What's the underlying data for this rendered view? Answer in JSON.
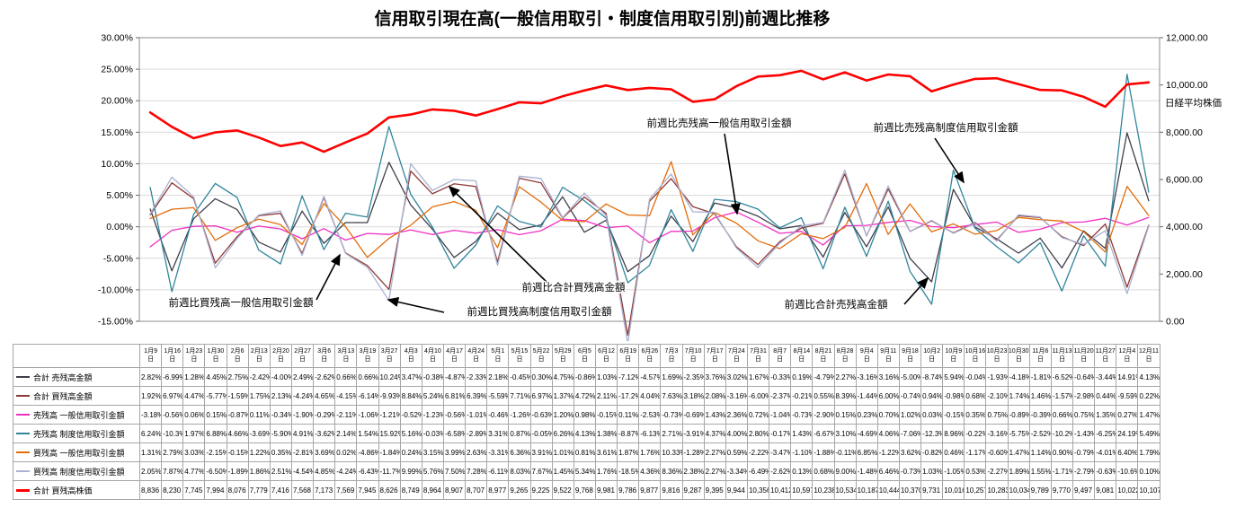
{
  "chart_data": {
    "type": "line",
    "title": "信用取引現在高(一般信用取引・制度信用取引別)前週比推移",
    "x_categories": [
      "1月9日",
      "1月16日",
      "1月23日",
      "1月30日",
      "2月6日",
      "2月13日",
      "2月20日",
      "2月27日",
      "3月6日",
      "3月13日",
      "3月19日",
      "3月27日",
      "4月3日",
      "4月10日",
      "4月17日",
      "4月24日",
      "5月1日",
      "5月15日",
      "5月22日",
      "5月29日",
      "6月5日",
      "6月12日",
      "6月19日",
      "6月26日",
      "7月3日",
      "7月10日",
      "7月17日",
      "7月24日",
      "7月31日",
      "8月7日",
      "8月14日",
      "8月21日",
      "8月28日",
      "9月4日",
      "9月11日",
      "9月18日",
      "10月2日",
      "10月9日",
      "10月16日",
      "10月23日",
      "10月30日",
      "11月6日",
      "11月13日",
      "11月20日",
      "11月27日",
      "12月4日",
      "12月11日"
    ],
    "left_axis": {
      "min": -15,
      "max": 30,
      "step": 5,
      "tick_labels": [
        "30.00%",
        "25.00%",
        "20.00%",
        "15.00%",
        "10.00%",
        "5.00%",
        "0.00%",
        "-5.00%",
        "-10.00%",
        "-15.00%"
      ]
    },
    "right_axis": {
      "min": 0,
      "max": 12000,
      "step": 2000,
      "title": "日経平均株価",
      "tick_labels": [
        "12,000.00",
        "10,000.00",
        "8,000.00",
        "6,000.00",
        "4,000.00",
        "2,000.00",
        "0.00"
      ]
    },
    "series": [
      {
        "label": "合計 売残高金額",
        "color": "#3f3f4c",
        "axis": "left",
        "cells": [
          "2.82%",
          "-6.99%",
          "1.28%",
          "4.45%",
          "2.75%",
          "-2.42%",
          "-4.00%",
          "2.49%",
          "-2.62%",
          "0.66%",
          "0.66%",
          "10.24%",
          "3.47%",
          "-0.38%",
          "-4.87%",
          "-2.33%",
          "2.18%",
          "-0.45%",
          "0.30%",
          "4.75%",
          "-0.86%",
          "1.03%",
          "-7.12%",
          "-4.57%",
          "1.69%",
          "-2.35%",
          "3.76%",
          "3.02%",
          "1.67%",
          "-0.33%",
          "0.19%",
          "-4.79%",
          "2.27%",
          "-3.16%",
          "3.16%",
          "-5.00%",
          "-8.74%",
          "5.94%",
          "-0.04%",
          "-1.93%",
          "-4.18%",
          "-1.81%",
          "-6.52%",
          "-0.64%",
          "-3.44%",
          "14.91%",
          "4.13%"
        ]
      },
      {
        "label": "合計 買残高金額",
        "color": "#8e3836",
        "axis": "left",
        "cells": [
          "1.92%",
          "6.97%",
          "4.47%",
          "-5.77%",
          "-1.59%",
          "1.75%",
          "2.13%",
          "-4.24%",
          "4.65%",
          "-4.15%",
          "-6.14%",
          "-9.93%",
          "8.84%",
          "5.24%",
          "6.81%",
          "6.39%",
          "-5.59%",
          "7.71%",
          "6.97%",
          "1.37%",
          "4.72%",
          "2.11%",
          "-17.2%",
          "4.04%",
          "7.63%",
          "3.18%",
          "2.08%",
          "-3.16%",
          "-6.00%",
          "-2.37%",
          "-0.21%",
          "0.55%",
          "8.39%",
          "-1.44%",
          "6.00%",
          "-0.74%",
          "0.94%",
          "-0.98%",
          "0.68%",
          "-2.10%",
          "1.74%",
          "1.46%",
          "-1.57%",
          "-2.98%",
          "0.44%",
          "-9.59%",
          "0.22%"
        ]
      },
      {
        "label": "売残高 一般信用取引金額",
        "color": "#f02fc2",
        "axis": "left",
        "cells": [
          "-3.18%",
          "-0.56%",
          "0.06%",
          "0.15%",
          "-0.87%",
          "0.11%",
          "-0.34%",
          "-1.90%",
          "-0.29%",
          "-2.11%",
          "-1.06%",
          "-1.21%",
          "-0.52%",
          "-1.23%",
          "-0.56%",
          "-1.01%",
          "-0.46%",
          "-1.26%",
          "-0.63%",
          "1.20%",
          "0.98%",
          "-0.15%",
          "0.11%",
          "-2.53%",
          "-0.73%",
          "-0.69%",
          "1.43%",
          "2.36%",
          "0.72%",
          "-1.04%",
          "-0.73%",
          "-2.90%",
          "0.15%",
          "0.23%",
          "0.70%",
          "1.02%",
          "0.03%",
          "-0.15%",
          "0.35%",
          "0.75%",
          "-0.89%",
          "-0.39%",
          "0.66%",
          "0.75%",
          "1.35%",
          "0.27%",
          "1.47%"
        ]
      },
      {
        "label": "売残高 制度信用取引金額",
        "color": "#31859c",
        "axis": "left",
        "cells": [
          "6.24%",
          "-10.3%",
          "1.97%",
          "6.88%",
          "4.66%",
          "-3.69%",
          "-5.90%",
          "4.91%",
          "-3.62%",
          "2.14%",
          "1.54%",
          "15.92%",
          "5.16%",
          "-0.03%",
          "-6.58%",
          "-2.89%",
          "3.31%",
          "0.87%",
          "-0.05%",
          "6.26%",
          "4.13%",
          "1.38%",
          "-8.87%",
          "-6.13%",
          "2.71%",
          "-3.91%",
          "4.37%",
          "4.00%",
          "2.80%",
          "-0.17%",
          "1.43%",
          "-6.67%",
          "3.10%",
          "-4.69%",
          "4.06%",
          "-7.06%",
          "-12.3%",
          "8.96%",
          "-0.22%",
          "-3.16%",
          "-5.75%",
          "-2.52%",
          "-10.2%",
          "-1.43%",
          "-6.25%",
          "24.19%",
          "5.49%"
        ]
      },
      {
        "label": "買残高 一般信用取引金額",
        "color": "#e36c0a",
        "axis": "left",
        "cells": [
          "1.31%",
          "2.79%",
          "3.03%",
          "-2.15%",
          "-0.15%",
          "1.22%",
          "0.35%",
          "-2.81%",
          "3.69%",
          "0.02%",
          "-4.86%",
          "-1.84%",
          "0.24%",
          "3.15%",
          "3.99%",
          "2.63%",
          "-3.31%",
          "6.36%",
          "3.91%",
          "1.01%",
          "0.81%",
          "3.61%",
          "1.87%",
          "1.76%",
          "10.33%",
          "-1.28%",
          "2.27%",
          "0.59%",
          "-2.22%",
          "-3.47%",
          "-1.10%",
          "-1.88%",
          "-0.11%",
          "6.85%",
          "-1.22%",
          "3.62%",
          "-0.82%",
          "0.46%",
          "-1.17%",
          "-0.60%",
          "1.47%",
          "1.14%",
          "0.90%",
          "-0.79%",
          "-4.01%",
          "6.40%",
          "1.79%"
        ]
      },
      {
        "label": "買残高 制度信用取引金額",
        "color": "#a9b2d2",
        "axis": "left",
        "cells": [
          "2.05%",
          "7.87%",
          "4.77%",
          "-6.50%",
          "-1.89%",
          "1.86%",
          "2.51%",
          "-4.54%",
          "4.85%",
          "-4.24%",
          "-6.43%",
          "-11.7%",
          "9.99%",
          "5.76%",
          "7.50%",
          "7.28%",
          "-6.11%",
          "8.03%",
          "7.67%",
          "1.45%",
          "5.34%",
          "1.76%",
          "-18.5%",
          "4.36%",
          "8.36%",
          "2.38%",
          "2.27%",
          "-3.34%",
          "-6.49%",
          "-2.62%",
          "0.13%",
          "0.68%",
          "9.00%",
          "-1.48%",
          "6.46%",
          "-0.73%",
          "1.03%",
          "-1.05%",
          "0.53%",
          "-2.27%",
          "1.89%",
          "1.55%",
          "-1.71%",
          "-2.79%",
          "-0.63%",
          "-10.6%",
          "0.10%"
        ]
      },
      {
        "label": "合計 買残高株価",
        "color": "#ff0000",
        "axis": "right",
        "cells": [
          "8,836",
          "8,230",
          "7,745",
          "7,994",
          "8,076",
          "7,779",
          "7,416",
          "7,568",
          "7,173",
          "7,569",
          "7,945",
          "8,626",
          "8,749",
          "8,964",
          "8,907",
          "8,707",
          "8,977",
          "9,265",
          "9,225",
          "9,522",
          "9,768",
          "9,981",
          "9,786",
          "9,877",
          "9,816",
          "9,287",
          "9,395",
          "9,944",
          "10,356",
          "10,412",
          "10,597",
          "10,238",
          "10,534",
          "10,187",
          "10,444",
          "10,370",
          "9,731",
          "10,016",
          "10,257",
          "10,283",
          "10,034",
          "9,789",
          "9,770",
          "9,497",
          "9,081",
          "10,022",
          "10,107"
        ]
      }
    ],
    "annotations": [
      {
        "text": "前週比売残高一般信用取引金額"
      },
      {
        "text": "前週比売残高制度信用取引金額"
      },
      {
        "text": "前週比合計買残高金額"
      },
      {
        "text": "前週比買残高一般信用取引金額"
      },
      {
        "text": "前週比買残高制度信用取引金額"
      },
      {
        "text": "前週比合計売残高金額"
      }
    ],
    "grid": "horizontal",
    "legend_position": "table-left-column"
  }
}
